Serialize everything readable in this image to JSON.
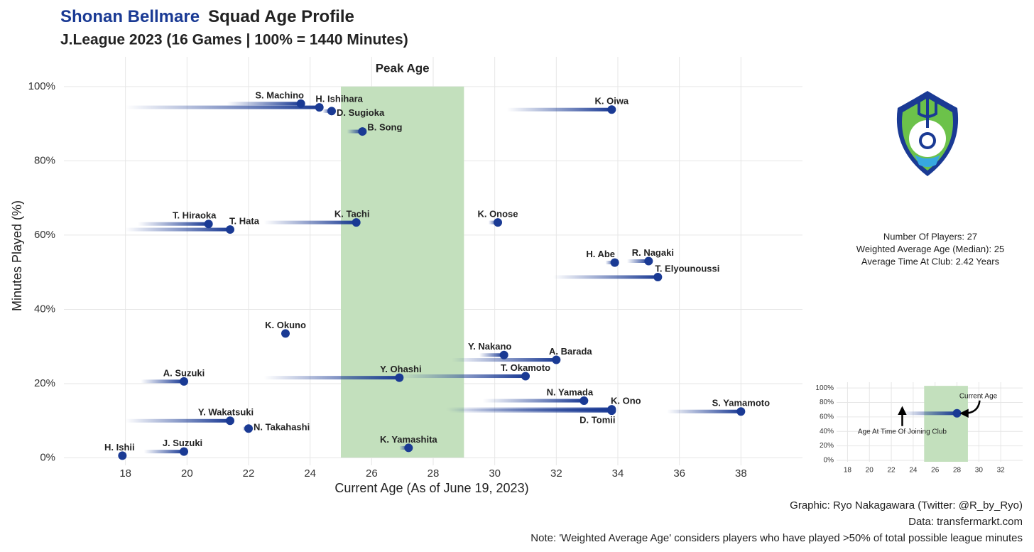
{
  "chart_data": {
    "type": "scatter",
    "title_team": "Shonan Bellmare",
    "title": "Squad Age Profile",
    "subtitle": "J.League 2023 (16 Games | 100% = 1440 Minutes)",
    "x_label": "Current Age (As of June 19, 2023)",
    "y_label": "Minutes Played (%)",
    "band_label": "Peak Age",
    "band": [
      25,
      29
    ],
    "band_color": "#c3e0bd",
    "color": "#1a3a94",
    "grid": true,
    "xlim": [
      16,
      40
    ],
    "ylim": [
      -2,
      108
    ],
    "xticks": [
      18,
      20,
      22,
      24,
      26,
      28,
      30,
      32,
      34,
      36,
      38
    ],
    "yticks": [
      {
        "value": 0,
        "label": "0%"
      },
      {
        "value": 20,
        "label": "20%"
      },
      {
        "value": 40,
        "label": "40%"
      },
      {
        "value": 60,
        "label": "60%"
      },
      {
        "value": 80,
        "label": "80%"
      },
      {
        "value": 100,
        "label": "100%"
      }
    ],
    "points": [
      {
        "name": "S. Machino",
        "age": 23.7,
        "minutes": 95.4,
        "joined": 21.3
      },
      {
        "name": "H. Ishihara",
        "age": 24.3,
        "minutes": 94.4,
        "joined": 18.0
      },
      {
        "name": "D. Sugioka",
        "age": 24.7,
        "minutes": 93.4,
        "joined": 24.4
      },
      {
        "name": "B. Song",
        "age": 25.7,
        "minutes": 87.9,
        "joined": 25.2
      },
      {
        "name": "K. Oiwa",
        "age": 33.8,
        "minutes": 93.8,
        "joined": 30.4
      },
      {
        "name": "T. Hiraoka",
        "age": 20.7,
        "minutes": 63.0,
        "joined": 18.4
      },
      {
        "name": "T. Hata",
        "age": 21.4,
        "minutes": 61.5,
        "joined": 18.0
      },
      {
        "name": "K. Tachi",
        "age": 25.5,
        "minutes": 63.4,
        "joined": 22.5
      },
      {
        "name": "K. Onose",
        "age": 30.1,
        "minutes": 63.4,
        "joined": 29.8
      },
      {
        "name": "H. Abe",
        "age": 33.9,
        "minutes": 52.6,
        "joined": 33.6
      },
      {
        "name": "R. Nagaki",
        "age": 35.0,
        "minutes": 53.0,
        "joined": 34.3
      },
      {
        "name": "T. Elyounoussi",
        "age": 35.3,
        "minutes": 48.7,
        "joined": 31.9
      },
      {
        "name": "K. Okuno",
        "age": 23.2,
        "minutes": 33.5,
        "joined": 23.2
      },
      {
        "name": "Y. Nakano",
        "age": 30.3,
        "minutes": 27.7,
        "joined": 29.5
      },
      {
        "name": "A. Barada",
        "age": 32.0,
        "minutes": 26.4,
        "joined": 28.6
      },
      {
        "name": "Y. Ohashi",
        "age": 26.9,
        "minutes": 21.6,
        "joined": 22.5
      },
      {
        "name": "T. Okamoto",
        "age": 31.0,
        "minutes": 22.0,
        "joined": 26.9
      },
      {
        "name": "A. Suzuki",
        "age": 19.9,
        "minutes": 20.6,
        "joined": 18.5
      },
      {
        "name": "N. Yamada",
        "age": 32.9,
        "minutes": 15.4,
        "joined": 29.6
      },
      {
        "name": "K. Ono",
        "age": 33.8,
        "minutes": 13.1,
        "joined": 28.4
      },
      {
        "name": "D. Tomii",
        "age": 33.8,
        "minutes": 12.7,
        "joined": 28.5
      },
      {
        "name": "S. Yamamoto",
        "age": 38.0,
        "minutes": 12.5,
        "joined": 35.6
      },
      {
        "name": "Y. Wakatsuki",
        "age": 21.4,
        "minutes": 10.0,
        "joined": 18.0
      },
      {
        "name": "N. Takahashi",
        "age": 22.0,
        "minutes": 7.9,
        "joined": 21.8
      },
      {
        "name": "K. Yamashita",
        "age": 27.2,
        "minutes": 2.7,
        "joined": 26.9
      },
      {
        "name": "J. Suzuki",
        "age": 19.9,
        "minutes": 1.7,
        "joined": 18.6
      },
      {
        "name": "H. Ishii",
        "age": 17.9,
        "minutes": 0.6,
        "joined": 17.9
      }
    ],
    "stats": [
      "Number Of Players: 27",
      "Weighted Average Age (Median): 25",
      "Average Time At Club: 2.42 Years"
    ],
    "credits": [
      "Graphic: Ryo Nakagawara (Twitter: @R_by_Ryo)",
      "Data: transfermarkt.com",
      "Note: 'Weighted Average Age' considers players who have played >50% of total possible league minutes"
    ],
    "inset": {
      "xlim": [
        17,
        34
      ],
      "ylim": [
        -2,
        108
      ],
      "xticks": [
        18,
        20,
        22,
        24,
        26,
        28,
        30,
        32
      ],
      "yticks": [
        {
          "value": 0,
          "label": "0%"
        },
        {
          "value": 20,
          "label": "20%"
        },
        {
          "value": 40,
          "label": "40%"
        },
        {
          "value": 60,
          "label": "60%"
        },
        {
          "value": 80,
          "label": "80%"
        },
        {
          "value": 100,
          "label": "100%"
        }
      ],
      "band": [
        25,
        29
      ],
      "age": 28,
      "minutes": 65,
      "joined": 23,
      "current_label": "Current Age",
      "joined_label": "Age At Time Of Joining Club"
    }
  }
}
